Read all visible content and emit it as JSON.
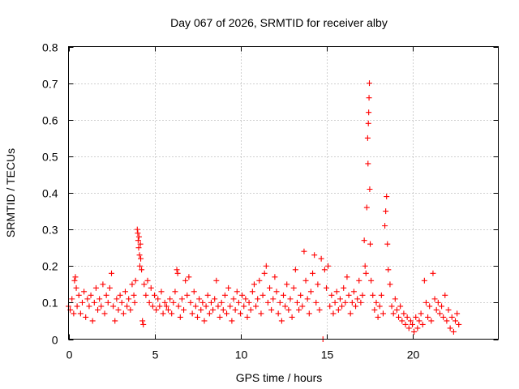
{
  "chart_data": {
    "type": "scatter",
    "title": "Day 067 of 2026, SRMTID for receiver alby",
    "xlabel": "GPS time / hours",
    "ylabel": "SRMTID / TECUs",
    "xlim": [
      0,
      25
    ],
    "ylim": [
      0,
      0.8
    ],
    "xticks": [
      0,
      5,
      10,
      15,
      20
    ],
    "xtick_labels": [
      "0",
      "5",
      "10",
      "15",
      "20"
    ],
    "yticks": [
      0,
      0.1,
      0.2,
      0.3,
      0.4,
      0.5,
      0.6,
      0.7,
      0.8
    ],
    "ytick_labels": [
      "0",
      "0.1",
      "0.2",
      "0.3",
      "0.4",
      "0.5",
      "0.6",
      "0.7",
      "0.8"
    ],
    "grid": true,
    "marker": "plus",
    "series_color": "#ff0000",
    "series": [
      {
        "name": "SRMTID",
        "points": [
          [
            0.0,
            0.09
          ],
          [
            0.1,
            0.08
          ],
          [
            0.2,
            0.11
          ],
          [
            0.3,
            0.07
          ],
          [
            0.35,
            0.16
          ],
          [
            0.4,
            0.17
          ],
          [
            0.45,
            0.14
          ],
          [
            0.5,
            0.09
          ],
          [
            0.6,
            0.12
          ],
          [
            0.7,
            0.07
          ],
          [
            0.8,
            0.1
          ],
          [
            0.9,
            0.13
          ],
          [
            1.0,
            0.06
          ],
          [
            1.1,
            0.11
          ],
          [
            1.2,
            0.09
          ],
          [
            1.3,
            0.12
          ],
          [
            1.4,
            0.05
          ],
          [
            1.5,
            0.1
          ],
          [
            1.6,
            0.14
          ],
          [
            1.7,
            0.08
          ],
          [
            1.8,
            0.11
          ],
          [
            1.9,
            0.09
          ],
          [
            2.0,
            0.15
          ],
          [
            2.1,
            0.07
          ],
          [
            2.2,
            0.12
          ],
          [
            2.3,
            0.1
          ],
          [
            2.4,
            0.14
          ],
          [
            2.5,
            0.18
          ],
          [
            2.6,
            0.09
          ],
          [
            2.7,
            0.05
          ],
          [
            2.8,
            0.11
          ],
          [
            2.9,
            0.08
          ],
          [
            3.0,
            0.12
          ],
          [
            3.1,
            0.1
          ],
          [
            3.2,
            0.07
          ],
          [
            3.3,
            0.13
          ],
          [
            3.4,
            0.09
          ],
          [
            3.5,
            0.11
          ],
          [
            3.6,
            0.08
          ],
          [
            3.7,
            0.15
          ],
          [
            3.8,
            0.12
          ],
          [
            3.85,
            0.1
          ],
          [
            3.9,
            0.16
          ],
          [
            4.0,
            0.3
          ],
          [
            4.03,
            0.29
          ],
          [
            4.05,
            0.27
          ],
          [
            4.08,
            0.25
          ],
          [
            4.1,
            0.28
          ],
          [
            4.13,
            0.23
          ],
          [
            4.15,
            0.2
          ],
          [
            4.18,
            0.26
          ],
          [
            4.2,
            0.22
          ],
          [
            4.25,
            0.19
          ],
          [
            4.3,
            0.05
          ],
          [
            4.35,
            0.04
          ],
          [
            4.4,
            0.15
          ],
          [
            4.5,
            0.12
          ],
          [
            4.6,
            0.16
          ],
          [
            4.7,
            0.1
          ],
          [
            4.8,
            0.14
          ],
          [
            4.9,
            0.09
          ],
          [
            5.0,
            0.12
          ],
          [
            5.1,
            0.08
          ],
          [
            5.2,
            0.11
          ],
          [
            5.3,
            0.09
          ],
          [
            5.4,
            0.13
          ],
          [
            5.5,
            0.07
          ],
          [
            5.6,
            0.1
          ],
          [
            5.7,
            0.09
          ],
          [
            5.8,
            0.08
          ],
          [
            5.9,
            0.11
          ],
          [
            6.0,
            0.07
          ],
          [
            6.1,
            0.1
          ],
          [
            6.2,
            0.13
          ],
          [
            6.3,
            0.19
          ],
          [
            6.35,
            0.18
          ],
          [
            6.4,
            0.09
          ],
          [
            6.5,
            0.06
          ],
          [
            6.6,
            0.11
          ],
          [
            6.7,
            0.08
          ],
          [
            6.8,
            0.16
          ],
          [
            6.9,
            0.12
          ],
          [
            7.0,
            0.17
          ],
          [
            7.1,
            0.1
          ],
          [
            7.2,
            0.07
          ],
          [
            7.3,
            0.13
          ],
          [
            7.4,
            0.09
          ],
          [
            7.5,
            0.06
          ],
          [
            7.6,
            0.11
          ],
          [
            7.7,
            0.08
          ],
          [
            7.8,
            0.1
          ],
          [
            7.9,
            0.05
          ],
          [
            8.0,
            0.09
          ],
          [
            8.1,
            0.12
          ],
          [
            8.2,
            0.07
          ],
          [
            8.3,
            0.1
          ],
          [
            8.4,
            0.08
          ],
          [
            8.5,
            0.11
          ],
          [
            8.6,
            0.16
          ],
          [
            8.7,
            0.09
          ],
          [
            8.8,
            0.06
          ],
          [
            8.9,
            0.1
          ],
          [
            9.0,
            0.08
          ],
          [
            9.1,
            0.12
          ],
          [
            9.2,
            0.07
          ],
          [
            9.3,
            0.14
          ],
          [
            9.4,
            0.09
          ],
          [
            9.5,
            0.05
          ],
          [
            9.6,
            0.11
          ],
          [
            9.7,
            0.08
          ],
          [
            9.8,
            0.13
          ],
          [
            9.9,
            0.1
          ],
          [
            10.0,
            0.07
          ],
          [
            10.1,
            0.12
          ],
          [
            10.2,
            0.09
          ],
          [
            10.3,
            0.11
          ],
          [
            10.4,
            0.06
          ],
          [
            10.5,
            0.1
          ],
          [
            10.6,
            0.08
          ],
          [
            10.7,
            0.13
          ],
          [
            10.8,
            0.15
          ],
          [
            10.9,
            0.09
          ],
          [
            11.0,
            0.11
          ],
          [
            11.1,
            0.16
          ],
          [
            11.2,
            0.07
          ],
          [
            11.3,
            0.12
          ],
          [
            11.4,
            0.18
          ],
          [
            11.5,
            0.2
          ],
          [
            11.6,
            0.1
          ],
          [
            11.7,
            0.14
          ],
          [
            11.8,
            0.08
          ],
          [
            11.9,
            0.11
          ],
          [
            12.0,
            0.17
          ],
          [
            12.1,
            0.13
          ],
          [
            12.2,
            0.07
          ],
          [
            12.3,
            0.1
          ],
          [
            12.4,
            0.05
          ],
          [
            12.5,
            0.12
          ],
          [
            12.6,
            0.09
          ],
          [
            12.7,
            0.15
          ],
          [
            12.8,
            0.08
          ],
          [
            12.9,
            0.11
          ],
          [
            13.0,
            0.06
          ],
          [
            13.1,
            0.14
          ],
          [
            13.2,
            0.19
          ],
          [
            13.3,
            0.1
          ],
          [
            13.4,
            0.08
          ],
          [
            13.5,
            0.12
          ],
          [
            13.6,
            0.09
          ],
          [
            13.7,
            0.24
          ],
          [
            13.8,
            0.16
          ],
          [
            13.9,
            0.11
          ],
          [
            14.0,
            0.07
          ],
          [
            14.1,
            0.13
          ],
          [
            14.2,
            0.18
          ],
          [
            14.3,
            0.23
          ],
          [
            14.4,
            0.1
          ],
          [
            14.5,
            0.15
          ],
          [
            14.6,
            0.08
          ],
          [
            14.7,
            0.22
          ],
          [
            14.8,
            0.0
          ],
          [
            14.9,
            0.19
          ],
          [
            15.0,
            0.14
          ],
          [
            15.1,
            0.2
          ],
          [
            15.2,
            0.09
          ],
          [
            15.3,
            0.12
          ],
          [
            15.4,
            0.07
          ],
          [
            15.5,
            0.1
          ],
          [
            15.6,
            0.13
          ],
          [
            15.7,
            0.08
          ],
          [
            15.8,
            0.11
          ],
          [
            15.9,
            0.09
          ],
          [
            16.0,
            0.14
          ],
          [
            16.1,
            0.1
          ],
          [
            16.2,
            0.17
          ],
          [
            16.3,
            0.12
          ],
          [
            16.4,
            0.07
          ],
          [
            16.5,
            0.1
          ],
          [
            16.6,
            0.13
          ],
          [
            16.7,
            0.09
          ],
          [
            16.8,
            0.11
          ],
          [
            16.9,
            0.16
          ],
          [
            17.0,
            0.1
          ],
          [
            17.1,
            0.12
          ],
          [
            17.2,
            0.27
          ],
          [
            17.25,
            0.2
          ],
          [
            17.3,
            0.18
          ],
          [
            17.35,
            0.36
          ],
          [
            17.4,
            0.55
          ],
          [
            17.42,
            0.48
          ],
          [
            17.44,
            0.59
          ],
          [
            17.46,
            0.62
          ],
          [
            17.48,
            0.66
          ],
          [
            17.5,
            0.7
          ],
          [
            17.52,
            0.41
          ],
          [
            17.55,
            0.26
          ],
          [
            17.6,
            0.16
          ],
          [
            17.7,
            0.12
          ],
          [
            17.8,
            0.08
          ],
          [
            17.9,
            0.1
          ],
          [
            18.0,
            0.06
          ],
          [
            18.1,
            0.09
          ],
          [
            18.2,
            0.12
          ],
          [
            18.3,
            0.07
          ],
          [
            18.4,
            0.31
          ],
          [
            18.45,
            0.35
          ],
          [
            18.5,
            0.39
          ],
          [
            18.55,
            0.26
          ],
          [
            18.6,
            0.19
          ],
          [
            18.7,
            0.15
          ],
          [
            18.8,
            0.09
          ],
          [
            18.9,
            0.07
          ],
          [
            19.0,
            0.11
          ],
          [
            19.1,
            0.08
          ],
          [
            19.2,
            0.06
          ],
          [
            19.3,
            0.09
          ],
          [
            19.4,
            0.05
          ],
          [
            19.5,
            0.07
          ],
          [
            19.6,
            0.04
          ],
          [
            19.7,
            0.06
          ],
          [
            19.8,
            0.03
          ],
          [
            19.9,
            0.05
          ],
          [
            20.0,
            0.04
          ],
          [
            20.1,
            0.02
          ],
          [
            20.2,
            0.06
          ],
          [
            20.3,
            0.03
          ],
          [
            20.4,
            0.05
          ],
          [
            20.5,
            0.07
          ],
          [
            20.6,
            0.04
          ],
          [
            20.7,
            0.16
          ],
          [
            20.8,
            0.1
          ],
          [
            20.9,
            0.06
          ],
          [
            21.0,
            0.09
          ],
          [
            21.1,
            0.05
          ],
          [
            21.2,
            0.18
          ],
          [
            21.3,
            0.11
          ],
          [
            21.4,
            0.08
          ],
          [
            21.5,
            0.1
          ],
          [
            21.6,
            0.07
          ],
          [
            21.7,
            0.09
          ],
          [
            21.8,
            0.06
          ],
          [
            21.9,
            0.12
          ],
          [
            22.0,
            0.05
          ],
          [
            22.1,
            0.08
          ],
          [
            22.2,
            0.03
          ],
          [
            22.3,
            0.06
          ],
          [
            22.4,
            0.02
          ],
          [
            22.5,
            0.05
          ],
          [
            22.6,
            0.07
          ],
          [
            22.7,
            0.04
          ]
        ]
      }
    ]
  }
}
